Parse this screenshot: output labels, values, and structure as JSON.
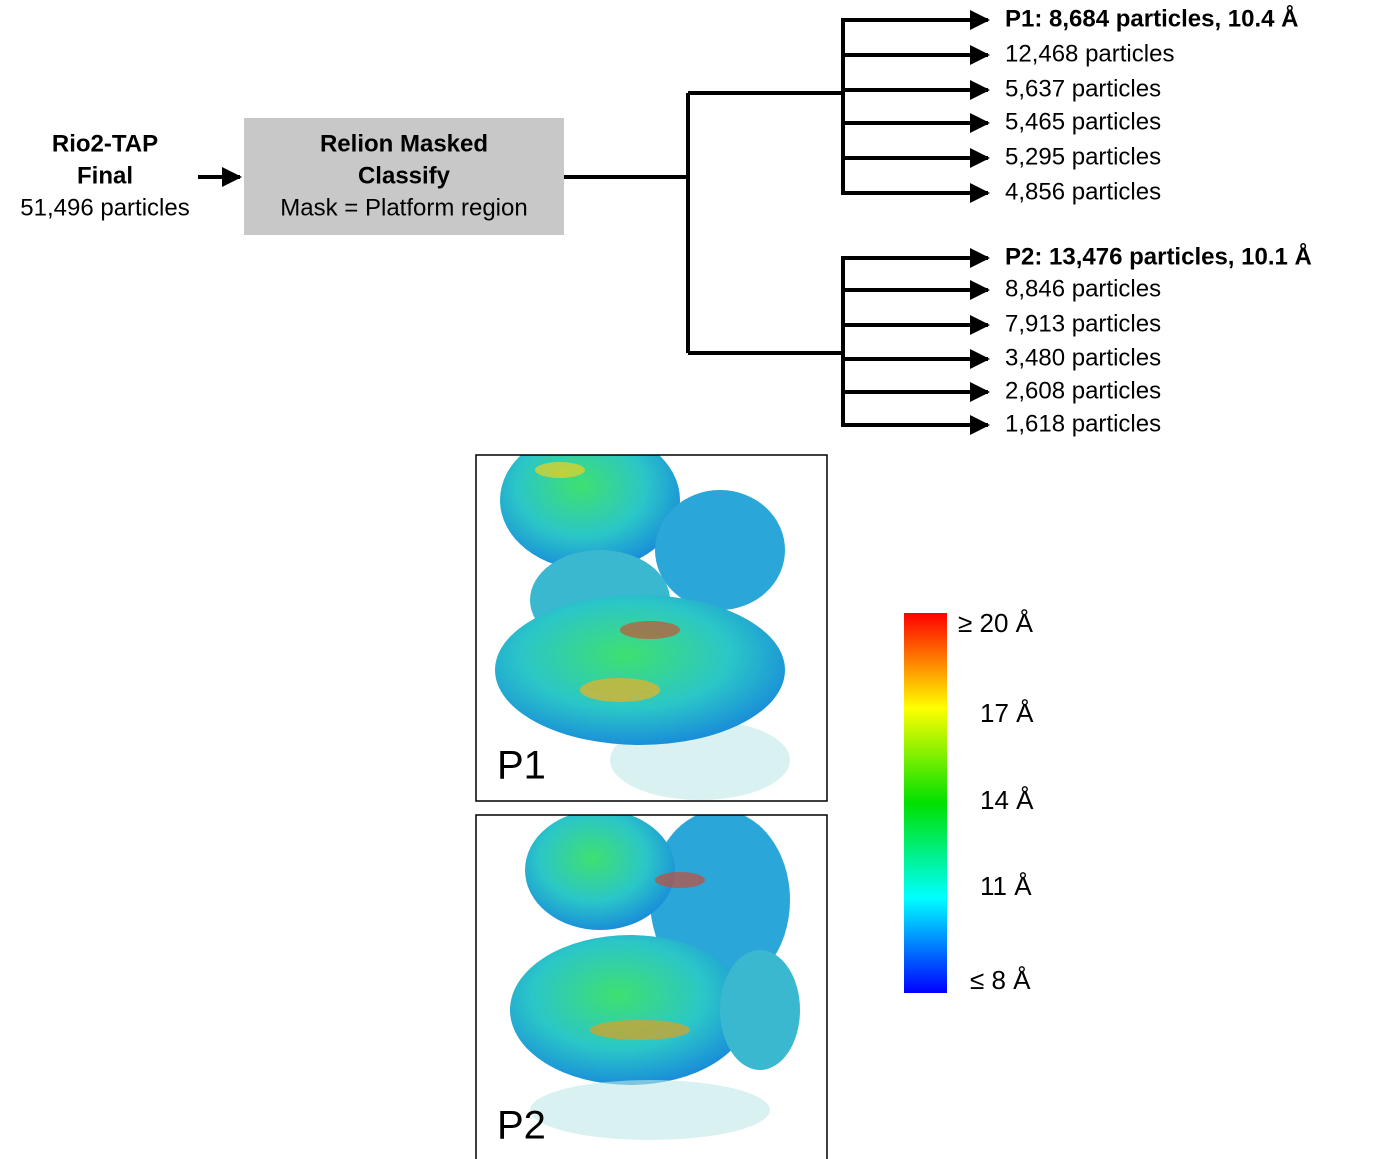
{
  "input": {
    "lines": [
      "Rio2-TAP",
      "Final",
      "51,496 particles"
    ]
  },
  "classify_box": {
    "lines": [
      "Relion Masked",
      "Classify",
      "Mask = Platform region"
    ]
  },
  "groups": [
    {
      "outputs": [
        "P1: 8,684 particles, 10.4  Å",
        "12,468 particles",
        "5,637 particles",
        "5,465 particles",
        "5,295 particles",
        "4,856 particles"
      ]
    },
    {
      "outputs": [
        "P2: 13,476 particles, 10.1  Å",
        "8,846 particles",
        "7,913 particles",
        "3,480 particles",
        "2,608 particles",
        "1,618 particles"
      ]
    }
  ],
  "panels": [
    {
      "label": "P1"
    },
    {
      "label": "P2"
    }
  ],
  "colorbar": {
    "labels": [
      "≥ 20 Å",
      "17 Å",
      "14 Å",
      "11 Å",
      "≤ 8 Å"
    ]
  }
}
